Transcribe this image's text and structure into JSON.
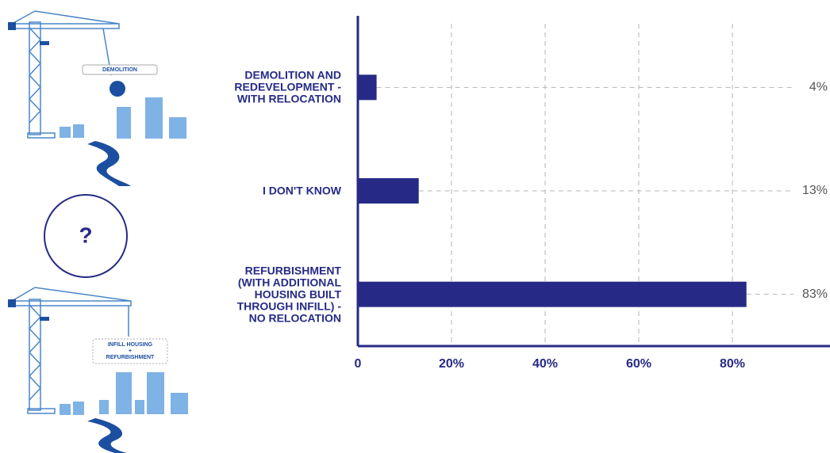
{
  "illustrations": {
    "demolition": "DEMOLITION",
    "question": "?",
    "infill": [
      "INFILL HOUSING",
      "+",
      "REFURBISHMENT"
    ]
  },
  "chart_data": {
    "type": "bar",
    "orientation": "horizontal",
    "categories": [
      "DEMOLITION AND REDEVELOPMENT - WITH RELOCATION",
      "I DON'T KNOW",
      "REFURBISHMENT (WITH ADDITIONAL HOUSING BUILT THROUGH INFILL) - NO RELOCATION"
    ],
    "values": [
      4,
      13,
      83
    ],
    "value_labels": [
      "4%",
      "13%",
      "83%"
    ],
    "color": "#262a86",
    "xlim": [
      0,
      100
    ],
    "xticks": [
      0,
      {
        "value": 20,
        "label": "20%"
      },
      {
        "value": 40,
        "label": "40%"
      },
      {
        "value": 60,
        "label": "60%"
      },
      {
        "value": 80,
        "label": "80%"
      }
    ],
    "grid": true
  }
}
